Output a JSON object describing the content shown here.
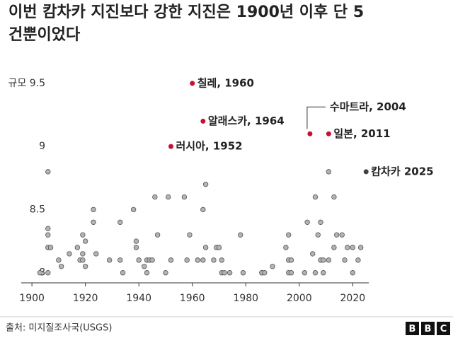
{
  "chart_data": {
    "type": "scatter",
    "title": "이번 캄차카 지진보다 강한 지진은 1900년 이후 단 5 건뿐이었다",
    "source": "출처: 미지질조사국(USGS)",
    "logo": [
      "B",
      "B",
      "C"
    ],
    "xlim": [
      1896,
      2026
    ],
    "xticks": [
      1900,
      1920,
      1940,
      1960,
      1980,
      2000,
      2020
    ],
    "ylim": [
      7.92,
      9.6
    ],
    "yticks": [
      8,
      8.5,
      9,
      {
        "value": 9.5,
        "label": "규모 9.5"
      }
    ],
    "points": {
      "color": "#b3b3b3",
      "x": [
        1903,
        1906,
        1906,
        1906,
        1906,
        1907,
        1906,
        1910,
        1911,
        1914,
        1917,
        1918,
        1919,
        1919,
        1919,
        1920,
        1920,
        1923,
        1923,
        1924,
        1929,
        1933,
        1933,
        1934,
        1938,
        1939,
        1939,
        1940,
        1942,
        1943,
        1943,
        1944,
        1945,
        1946,
        1947,
        1950,
        1951,
        1952,
        1957,
        1958,
        1959,
        1962,
        1964,
        1964,
        1965,
        1965,
        1968,
        1969,
        1970,
        1971,
        1971,
        1972,
        1974,
        1978,
        1979,
        1986,
        1986,
        1987,
        1990,
        1995,
        1996,
        1996,
        1996,
        1997,
        1997,
        2002,
        2003,
        2005,
        2006,
        2006,
        2007,
        2008,
        2008,
        2009,
        2009,
        2011,
        2011,
        2013,
        2013,
        2014,
        2016,
        2017,
        2018,
        2020,
        2020,
        2022,
        2023
      ],
      "values": [
        8.0,
        8.35,
        8.3,
        8.8,
        8.2,
        8.2,
        8.0,
        8.1,
        8.05,
        8.15,
        8.2,
        8.1,
        8.3,
        8.15,
        8.1,
        8.25,
        8.05,
        8.5,
        8.4,
        8.15,
        8.1,
        8.1,
        8.4,
        8.0,
        8.5,
        8.25,
        8.2,
        8.1,
        8.05,
        8.1,
        8.0,
        8.1,
        8.1,
        8.6,
        8.3,
        8.0,
        8.6,
        8.1,
        8.6,
        8.1,
        8.3,
        8.1,
        8.5,
        8.1,
        8.7,
        8.2,
        8.1,
        8.2,
        8.2,
        8.0,
        8.1,
        8.0,
        8.0,
        8.3,
        8.0,
        8.0,
        8.0,
        8.0,
        8.05,
        8.2,
        8.3,
        8.1,
        8.0,
        8.0,
        8.1,
        8.0,
        8.4,
        8.15,
        8.6,
        8.0,
        8.3,
        8.1,
        8.4,
        8.1,
        8.0,
        8.1,
        8.8,
        8.6,
        8.2,
        8.3,
        8.3,
        8.1,
        8.2,
        8.2,
        8.0,
        8.1,
        8.2
      ]
    },
    "highlights": [
      {
        "label": "칠레, 1960",
        "x": 1960,
        "value": 9.5,
        "color": "#c8102e"
      },
      {
        "label": "알래스카, 1964",
        "x": 1964,
        "value": 9.2,
        "color": "#c8102e"
      },
      {
        "label": "러시아, 1952",
        "x": 1952,
        "value": 9.0,
        "color": "#c8102e"
      },
      {
        "label": "수마트라, 2004",
        "x": 2004,
        "value": 9.1,
        "color": "#c8102e"
      },
      {
        "label": "일본, 2011",
        "x": 2011,
        "value": 9.1,
        "color": "#c8102e"
      },
      {
        "label": "캄차카 2025",
        "x": 2025,
        "value": 8.8,
        "color": "#404040"
      }
    ]
  }
}
